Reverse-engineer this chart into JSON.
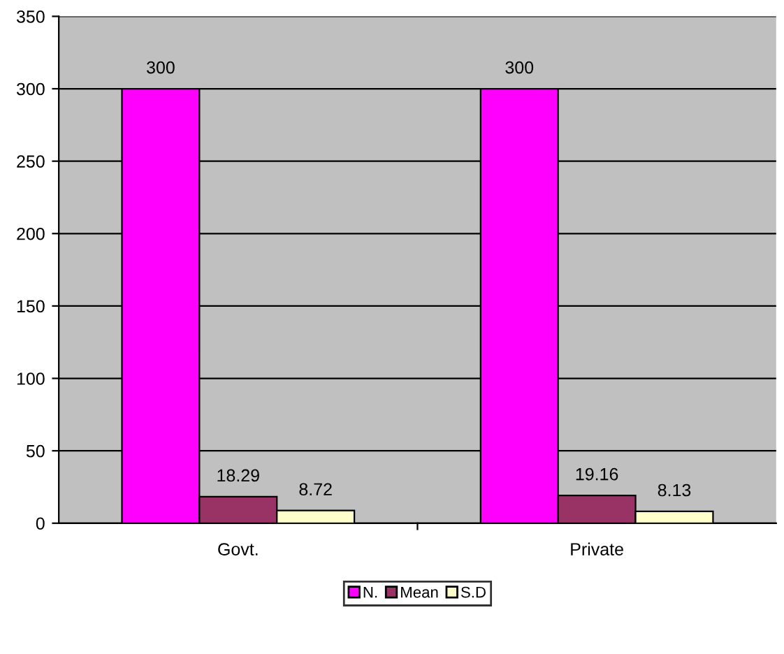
{
  "chart_data": {
    "type": "bar",
    "categories": [
      "Govt.",
      "Private"
    ],
    "series": [
      {
        "name": "N.",
        "color": "#ff00ff",
        "values": [
          300,
          300
        ]
      },
      {
        "name": "Mean",
        "color": "#993366",
        "values": [
          18.29,
          19.16
        ]
      },
      {
        "name": "S.D",
        "color": "#ffffcc",
        "values": [
          8.72,
          8.13
        ]
      }
    ],
    "ylim": [
      0,
      350
    ],
    "yticks": [
      0,
      50,
      100,
      150,
      200,
      250,
      300,
      350
    ],
    "grid": "y",
    "legend": "bottom",
    "data_labels": true
  }
}
